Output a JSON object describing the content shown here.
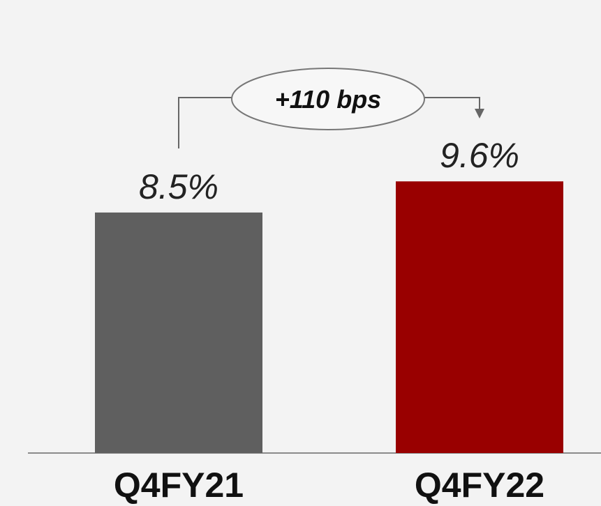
{
  "chart_data": {
    "type": "bar",
    "categories": [
      "Q4FY21",
      "Q4FY22"
    ],
    "values": [
      8.5,
      9.6
    ],
    "value_labels": [
      "8.5%",
      "9.6%"
    ],
    "colors": [
      "#5f5f5f",
      "#990000"
    ],
    "ylim": [
      0,
      10
    ],
    "grid": false,
    "annotation": {
      "text": "+110 bps",
      "from_category": "Q4FY21",
      "to_category": "Q4FY22"
    }
  }
}
